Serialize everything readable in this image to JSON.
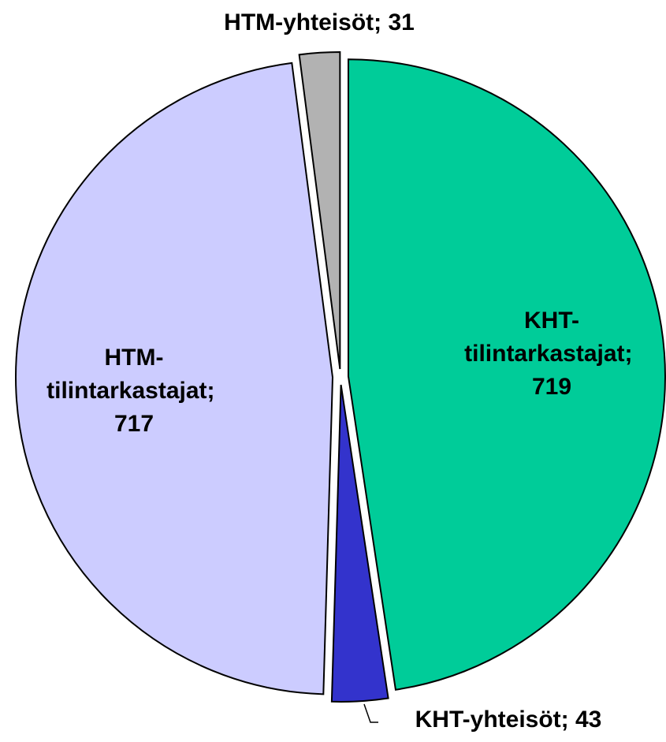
{
  "chart_data": {
    "type": "pie",
    "categories": [
      "KHT-tilintarkastajat",
      "KHT-yhteisöt",
      "HTM-tilintarkastajat",
      "HTM-yhteisöt"
    ],
    "values": [
      719,
      43,
      717,
      31
    ],
    "labels": [
      "KHT-tilintarkastajat; 719",
      "KHT-yhteisöt; 43",
      "HTM-tilintarkastajat; 717",
      "HTM-yhteisöt; 31"
    ],
    "colors": [
      "#00cc99",
      "#3333cc",
      "#ccccff",
      "#b2b2b2"
    ]
  }
}
